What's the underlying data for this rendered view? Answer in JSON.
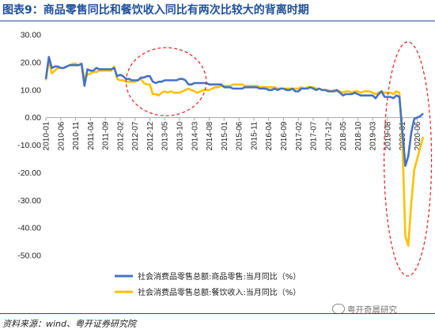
{
  "header": {
    "title": "图表9：商品零售同比和餐饮收入同比有两次比较大的背离时期"
  },
  "footer": {
    "source": "资料来源：wind、粤开证券研究院",
    "watermark": "粤开奇晨研究"
  },
  "colors": {
    "series1": "#4472c4",
    "series2": "#ffc000",
    "annotation": "#e02020",
    "title": "#1f4f9a"
  },
  "chart_data": {
    "type": "line",
    "title": "",
    "xlabel": "",
    "ylabel": "",
    "ylim": [
      -50,
      30
    ],
    "yticks": [
      "30.00",
      "20.00",
      "10.00",
      "0.00",
      "-10.00",
      "-20.00",
      "-30.00",
      "-40.00",
      "-50.00"
    ],
    "xticks": [
      "2010-01",
      "2010-06",
      "2010-11",
      "2011-04",
      "2011-09",
      "2012-02",
      "2012-07",
      "2012-12",
      "2013-05",
      "2013-10",
      "2014-03",
      "2014-08",
      "2015-01",
      "2015-06",
      "2015-11",
      "2016-04",
      "2016-09",
      "2017-02",
      "2017-07",
      "2017-12",
      "2018-05",
      "2018-10",
      "2019-03",
      "2019-08",
      "2020-01",
      "2020-06"
    ],
    "grid": false,
    "legend": "bottom",
    "annotations": [
      "dashed-ellipse-2012-2014",
      "dashed-ellipse-2020"
    ],
    "series": [
      {
        "name": "社会消费品零售总额:商品零售:当月同比（%）",
        "points": [
          [
            "2010-01",
            14
          ],
          [
            "2010-02",
            22
          ],
          [
            "2010-03",
            18
          ],
          [
            "2010-04",
            18.5
          ],
          [
            "2010-05",
            18.5
          ],
          [
            "2010-06",
            18
          ],
          [
            "2010-07",
            18
          ],
          [
            "2010-08",
            18.5
          ],
          [
            "2010-09",
            19
          ],
          [
            "2010-10",
            19
          ],
          [
            "2010-11",
            19
          ],
          [
            "2010-12",
            19
          ],
          [
            "2011-01",
            19.5
          ],
          [
            "2011-02",
            11.5
          ],
          [
            "2011-03",
            17.5
          ],
          [
            "2011-04",
            17
          ],
          [
            "2011-05",
            17
          ],
          [
            "2011-06",
            18
          ],
          [
            "2011-07",
            17.5
          ],
          [
            "2011-08",
            17.5
          ],
          [
            "2011-09",
            17.5
          ],
          [
            "2011-10",
            17.5
          ],
          [
            "2011-11",
            17.5
          ],
          [
            "2011-12",
            18
          ],
          [
            "2012-01",
            15
          ],
          [
            "2012-02",
            15.5
          ],
          [
            "2012-03",
            15
          ],
          [
            "2012-04",
            14
          ],
          [
            "2012-05",
            14
          ],
          [
            "2012-06",
            13.5
          ],
          [
            "2012-07",
            13.5
          ],
          [
            "2012-08",
            13.5
          ],
          [
            "2012-09",
            14.5
          ],
          [
            "2012-10",
            14.5
          ],
          [
            "2012-11",
            15
          ],
          [
            "2012-12",
            15
          ],
          [
            "2013-01",
            13
          ],
          [
            "2013-02",
            12.5
          ],
          [
            "2013-03",
            13
          ],
          [
            "2013-04",
            13
          ],
          [
            "2013-05",
            13.5
          ],
          [
            "2013-06",
            13.5
          ],
          [
            "2013-07",
            13.5
          ],
          [
            "2013-08",
            13.5
          ],
          [
            "2013-09",
            13.5
          ],
          [
            "2013-10",
            14
          ],
          [
            "2013-11",
            14
          ],
          [
            "2013-12",
            13.5
          ],
          [
            "2014-01",
            12
          ],
          [
            "2014-02",
            12
          ],
          [
            "2014-03",
            12.5
          ],
          [
            "2014-04",
            12.5
          ],
          [
            "2014-05",
            12.5
          ],
          [
            "2014-06",
            12.5
          ],
          [
            "2014-07",
            12.5
          ],
          [
            "2014-08",
            12
          ],
          [
            "2014-09",
            12
          ],
          [
            "2014-10",
            12
          ],
          [
            "2014-11",
            12
          ],
          [
            "2014-12",
            12
          ],
          [
            "2015-01",
            11
          ],
          [
            "2015-02",
            11
          ],
          [
            "2015-03",
            11
          ],
          [
            "2015-04",
            10.5
          ],
          [
            "2015-05",
            10.5
          ],
          [
            "2015-06",
            10.5
          ],
          [
            "2015-07",
            10.5
          ],
          [
            "2015-08",
            11
          ],
          [
            "2015-09",
            11
          ],
          [
            "2015-10",
            11
          ],
          [
            "2015-11",
            11
          ],
          [
            "2015-12",
            11
          ],
          [
            "2016-01",
            10.5
          ],
          [
            "2016-02",
            10.5
          ],
          [
            "2016-03",
            10.5
          ],
          [
            "2016-04",
            10
          ],
          [
            "2016-05",
            10
          ],
          [
            "2016-06",
            10.5
          ],
          [
            "2016-07",
            10
          ],
          [
            "2016-08",
            10.5
          ],
          [
            "2016-09",
            10.5
          ],
          [
            "2016-10",
            10
          ],
          [
            "2016-11",
            10
          ],
          [
            "2016-12",
            10.5
          ],
          [
            "2017-01",
            9.5
          ],
          [
            "2017-02",
            9.5
          ],
          [
            "2017-03",
            10.5
          ],
          [
            "2017-04",
            10.5
          ],
          [
            "2017-05",
            10.5
          ],
          [
            "2017-06",
            11
          ],
          [
            "2017-07",
            10.5
          ],
          [
            "2017-08",
            10
          ],
          [
            "2017-09",
            10.5
          ],
          [
            "2017-10",
            10
          ],
          [
            "2017-11",
            10
          ],
          [
            "2017-12",
            9.5
          ],
          [
            "2018-01",
            9.5
          ],
          [
            "2018-02",
            9.5
          ],
          [
            "2018-03",
            10
          ],
          [
            "2018-04",
            9
          ],
          [
            "2018-05",
            8
          ],
          [
            "2018-06",
            8.5
          ],
          [
            "2018-07",
            8.5
          ],
          [
            "2018-08",
            8.5
          ],
          [
            "2018-09",
            9
          ],
          [
            "2018-10",
            8.5
          ],
          [
            "2018-11",
            8
          ],
          [
            "2018-12",
            8
          ],
          [
            "2019-01",
            8
          ],
          [
            "2019-02",
            8
          ],
          [
            "2019-03",
            8
          ],
          [
            "2019-04",
            7
          ],
          [
            "2019-05",
            8.5
          ],
          [
            "2019-06",
            9.5
          ],
          [
            "2019-07",
            7.5
          ],
          [
            "2019-08",
            7.5
          ],
          [
            "2019-09",
            7.5
          ],
          [
            "2019-10",
            7
          ],
          [
            "2019-11",
            8
          ],
          [
            "2019-12",
            7.5
          ],
          [
            "2020-01",
            -5
          ],
          [
            "2020-02",
            -17.5
          ],
          [
            "2020-03",
            -14
          ],
          [
            "2020-04",
            -5.5
          ],
          [
            "2020-05",
            -0.5
          ],
          [
            "2020-06",
            0
          ],
          [
            "2020-07",
            0.5
          ],
          [
            "2020-08",
            1.5
          ]
        ]
      },
      {
        "name": "社会消费品零售总额:餐饮收入:当月同比（%）",
        "points": [
          [
            "2010-01",
            13.5
          ],
          [
            "2010-02",
            21
          ],
          [
            "2010-03",
            16
          ],
          [
            "2010-04",
            17
          ],
          [
            "2010-05",
            18
          ],
          [
            "2010-06",
            18
          ],
          [
            "2010-07",
            18
          ],
          [
            "2010-08",
            18.5
          ],
          [
            "2010-09",
            19
          ],
          [
            "2010-10",
            19.5
          ],
          [
            "2010-11",
            19.5
          ],
          [
            "2010-12",
            19
          ],
          [
            "2011-01",
            19.5
          ],
          [
            "2011-02",
            14
          ],
          [
            "2011-03",
            15.5
          ],
          [
            "2011-04",
            16
          ],
          [
            "2011-05",
            16.5
          ],
          [
            "2011-06",
            16.5
          ],
          [
            "2011-07",
            17
          ],
          [
            "2011-08",
            17
          ],
          [
            "2011-09",
            17
          ],
          [
            "2011-10",
            17
          ],
          [
            "2011-11",
            17
          ],
          [
            "2011-12",
            18.5
          ],
          [
            "2012-01",
            14
          ],
          [
            "2012-02",
            13.5
          ],
          [
            "2012-03",
            13.5
          ],
          [
            "2012-04",
            13
          ],
          [
            "2012-05",
            13
          ],
          [
            "2012-06",
            13
          ],
          [
            "2012-07",
            13
          ],
          [
            "2012-08",
            13.5
          ],
          [
            "2012-09",
            14
          ],
          [
            "2012-10",
            12.5
          ],
          [
            "2012-11",
            12
          ],
          [
            "2012-12",
            12
          ],
          [
            "2013-01",
            8.5
          ],
          [
            "2013-02",
            8.5
          ],
          [
            "2013-03",
            8
          ],
          [
            "2013-04",
            9
          ],
          [
            "2013-05",
            9.5
          ],
          [
            "2013-06",
            9
          ],
          [
            "2013-07",
            9.5
          ],
          [
            "2013-08",
            9
          ],
          [
            "2013-09",
            9
          ],
          [
            "2013-10",
            9
          ],
          [
            "2013-11",
            9.5
          ],
          [
            "2013-12",
            10
          ],
          [
            "2014-01",
            10.5
          ],
          [
            "2014-02",
            10
          ],
          [
            "2014-03",
            9.5
          ],
          [
            "2014-04",
            9
          ],
          [
            "2014-05",
            9.5
          ],
          [
            "2014-06",
            10
          ],
          [
            "2014-07",
            10
          ],
          [
            "2014-08",
            10
          ],
          [
            "2014-09",
            10.5
          ],
          [
            "2014-10",
            11
          ],
          [
            "2014-11",
            11
          ],
          [
            "2014-12",
            11.5
          ],
          [
            "2015-01",
            11.5
          ],
          [
            "2015-02",
            11.5
          ],
          [
            "2015-03",
            11.5
          ],
          [
            "2015-04",
            12
          ],
          [
            "2015-05",
            12
          ],
          [
            "2015-06",
            12
          ],
          [
            "2015-07",
            12
          ],
          [
            "2015-08",
            11.5
          ],
          [
            "2015-09",
            11.5
          ],
          [
            "2015-10",
            11.5
          ],
          [
            "2015-11",
            11.5
          ],
          [
            "2015-12",
            11.5
          ],
          [
            "2016-01",
            11
          ],
          [
            "2016-02",
            11
          ],
          [
            "2016-03",
            11
          ],
          [
            "2016-04",
            11
          ],
          [
            "2016-05",
            11
          ],
          [
            "2016-06",
            11
          ],
          [
            "2016-07",
            10.5
          ],
          [
            "2016-08",
            10.5
          ],
          [
            "2016-09",
            10.5
          ],
          [
            "2016-10",
            10.5
          ],
          [
            "2016-11",
            10.5
          ],
          [
            "2016-12",
            10.5
          ],
          [
            "2017-01",
            10.5
          ],
          [
            "2017-02",
            10.5
          ],
          [
            "2017-03",
            11
          ],
          [
            "2017-04",
            10.5
          ],
          [
            "2017-05",
            11
          ],
          [
            "2017-06",
            11
          ],
          [
            "2017-07",
            11
          ],
          [
            "2017-08",
            10.5
          ],
          [
            "2017-09",
            10.5
          ],
          [
            "2017-10",
            10
          ],
          [
            "2017-11",
            10
          ],
          [
            "2017-12",
            10
          ],
          [
            "2018-01",
            9.5
          ],
          [
            "2018-02",
            10
          ],
          [
            "2018-03",
            9.5
          ],
          [
            "2018-04",
            9.5
          ],
          [
            "2018-05",
            9
          ],
          [
            "2018-06",
            9.5
          ],
          [
            "2018-07",
            9.5
          ],
          [
            "2018-08",
            9
          ],
          [
            "2018-09",
            9.5
          ],
          [
            "2018-10",
            9.5
          ],
          [
            "2018-11",
            9
          ],
          [
            "2018-12",
            9.5
          ],
          [
            "2019-01",
            9.5
          ],
          [
            "2019-02",
            9.5
          ],
          [
            "2019-03",
            9
          ],
          [
            "2019-04",
            8.5
          ],
          [
            "2019-05",
            9
          ],
          [
            "2019-06",
            9.5
          ],
          [
            "2019-07",
            9
          ],
          [
            "2019-08",
            9
          ],
          [
            "2019-09",
            9
          ],
          [
            "2019-10",
            8.5
          ],
          [
            "2019-11",
            9.5
          ],
          [
            "2019-12",
            9
          ],
          [
            "2020-01",
            -8
          ],
          [
            "2020-02",
            -43
          ],
          [
            "2020-03",
            -46.5
          ],
          [
            "2020-04",
            -31
          ],
          [
            "2020-05",
            -19
          ],
          [
            "2020-06",
            -15
          ],
          [
            "2020-07",
            -11
          ],
          [
            "2020-08",
            -7
          ]
        ]
      }
    ]
  }
}
